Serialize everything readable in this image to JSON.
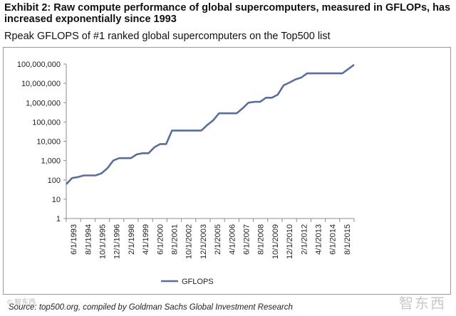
{
  "header": {
    "title": "Exhibit 2: Raw compute performance of global supercomputers, measured in GFLOPs, has increased exponentially since 1993",
    "subtitle": "Rpeak GFLOPS of #1 ranked global supercomputers on the Top500 list"
  },
  "footer": {
    "source": "Source: top500.org, compiled by Goldman Sachs Global Investment Research",
    "watermark": "智东西",
    "watermark_left": "© 智东西"
  },
  "chart_data": {
    "type": "line",
    "title": "Rpeak GFLOPS of #1 ranked global supercomputers on the Top500 list",
    "xlabel": "",
    "ylabel": "",
    "yscale": "log",
    "ylim": [
      1,
      100000000
    ],
    "grid": false,
    "legend": "bottom-center",
    "y_tick_labels": [
      "1",
      "10",
      "100",
      "1,000",
      "10,000",
      "100,000",
      "1,000,000",
      "10,000,000",
      "100,000,000"
    ],
    "x_tick_labels": [
      "6/1/1993",
      "8/1/1994",
      "10/1/1995",
      "12/1/1996",
      "2/1/1998",
      "4/1/1999",
      "6/1/2000",
      "8/1/2001",
      "10/1/2002",
      "12/1/2003",
      "2/1/2005",
      "4/1/2006",
      "6/1/2007",
      "8/1/2008",
      "10/1/2009",
      "12/1/2010",
      "2/1/2012",
      "4/1/2013",
      "6/1/2014",
      "8/1/2015"
    ],
    "series": [
      {
        "name": "GFLOPS",
        "color": "#5b6e9b",
        "values": [
          60,
          125,
          140,
          170,
          170,
          170,
          220,
          400,
          1000,
          1340,
          1340,
          1340,
          2100,
          2400,
          2400,
          4900,
          7200,
          7200,
          35900,
          35900,
          35900,
          35900,
          35900,
          35900,
          70000,
          120000,
          280000,
          280000,
          280000,
          280000,
          500000,
          1000000,
          1100000,
          1100000,
          1800000,
          1800000,
          2600000,
          8000000,
          11000000,
          16000000,
          20000000,
          33000000,
          33000000,
          33000000,
          33000000,
          33000000,
          33000000,
          33000000,
          55000000,
          93000000
        ]
      }
    ]
  }
}
